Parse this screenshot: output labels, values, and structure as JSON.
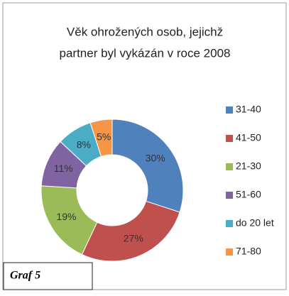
{
  "chart_data": {
    "type": "donut",
    "title": [
      "Věk ohrožených osob, jejichž",
      "partner byl vykázán v roce 2008"
    ],
    "categories": [
      "31-40",
      "41-50",
      "21-30",
      "51-60",
      "do 20 let",
      "71-80"
    ],
    "values": [
      30,
      27,
      19,
      11,
      8,
      5
    ],
    "value_labels": [
      "30%",
      "27%",
      "19%",
      "11%",
      "8%",
      "5%"
    ],
    "colors": [
      "#4f81bd",
      "#c0504d",
      "#9bbb59",
      "#8064a2",
      "#4bacc6",
      "#f79646"
    ],
    "legend": "right"
  },
  "caption": "Graf 5"
}
